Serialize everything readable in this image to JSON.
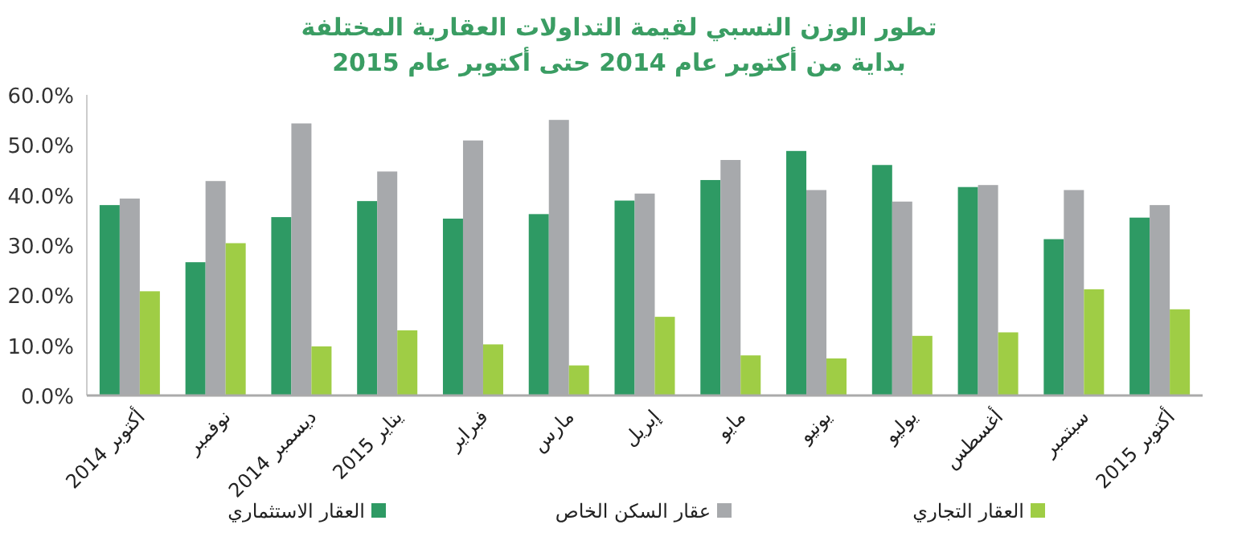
{
  "chart_data": {
    "type": "bar",
    "title": "تطور الوزن النسبي لقيمة التداولات العقارية المختلفة",
    "subtitle": "بداية من أكتوبر عام 2014 حتى أكتوبر عام 2015",
    "categories": [
      "أكتوبر 2014",
      "نوفمبر",
      "ديسمبر 2014",
      "يناير 2015",
      "فبراير",
      "مارس",
      "إبريل",
      "مايو",
      "يونيو",
      "يوليو",
      "أغسطس",
      "سبتمبر",
      "أكتوبر 2015"
    ],
    "series": [
      {
        "name": "العقار الاستثماري",
        "color": "#2e9a64",
        "values": [
          38,
          26.6,
          35.6,
          38.8,
          35.3,
          36.2,
          38.9,
          43,
          48.8,
          46,
          41.6,
          31.2,
          35.5
        ]
      },
      {
        "name": "عقار السكن الخاص",
        "color": "#a7a9ac",
        "values": [
          39.3,
          42.8,
          54.3,
          44.7,
          50.9,
          55,
          40.3,
          47,
          41,
          38.7,
          42,
          41,
          38
        ]
      },
      {
        "name": "العقار التجاري",
        "color": "#9fcd45",
        "values": [
          20.8,
          30.4,
          9.8,
          13,
          10.2,
          6,
          15.7,
          8,
          7.4,
          11.9,
          12.6,
          21.2,
          17.2
        ]
      }
    ],
    "ylim": [
      0,
      60
    ],
    "yticks": [
      {
        "value": 0,
        "label": "0.0%"
      },
      {
        "value": 10,
        "label": "10.0%"
      },
      {
        "value": 20,
        "label": "20.0%"
      },
      {
        "value": 30,
        "label": "30.0%"
      },
      {
        "value": 40,
        "label": "40.0%"
      },
      {
        "value": 50,
        "label": "50.0%"
      },
      {
        "value": 60,
        "label": "60.0%"
      }
    ],
    "grid": false,
    "legend": "bottom"
  }
}
